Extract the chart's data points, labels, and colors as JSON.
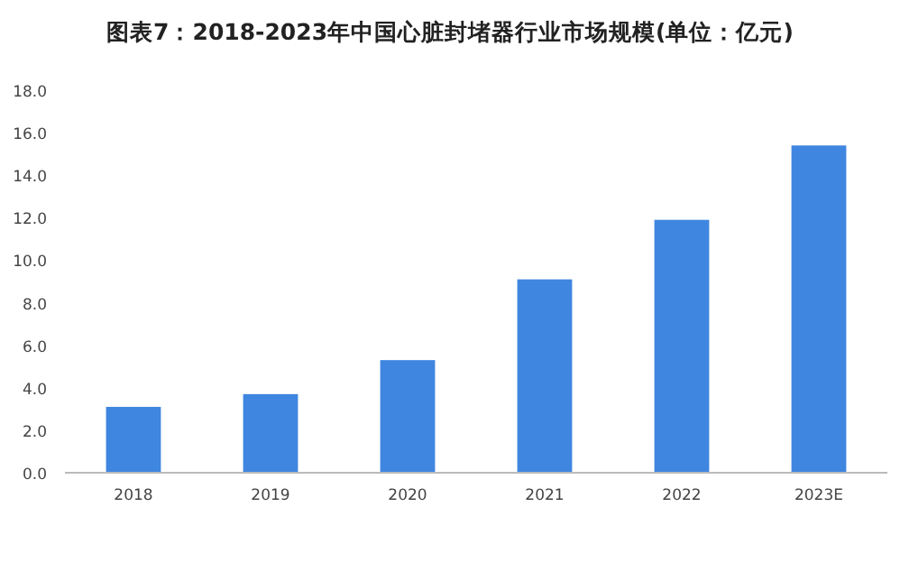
{
  "chart_data": {
    "type": "bar",
    "title": "图表7：2018-2023年中国心脏封堵器行业市场规模(单位：亿元)",
    "categories": [
      "2018",
      "2019",
      "2020",
      "2021",
      "2022",
      "2023E"
    ],
    "values": [
      3.1,
      3.7,
      5.3,
      9.1,
      11.9,
      15.4
    ],
    "color": "#3f86e0",
    "ylim": [
      0,
      18
    ],
    "yticks": [
      {
        "value": 0,
        "label": "0.0"
      },
      {
        "value": 2,
        "label": "2.0"
      },
      {
        "value": 4,
        "label": "4.0"
      },
      {
        "value": 6,
        "label": "6.0"
      },
      {
        "value": 8,
        "label": "8.0"
      },
      {
        "value": 10,
        "label": "10.0"
      },
      {
        "value": 12,
        "label": "12.0"
      },
      {
        "value": 14,
        "label": "14.0"
      },
      {
        "value": 16,
        "label": "16.0"
      },
      {
        "value": 18,
        "label": "18.0"
      }
    ],
    "grid": false
  }
}
